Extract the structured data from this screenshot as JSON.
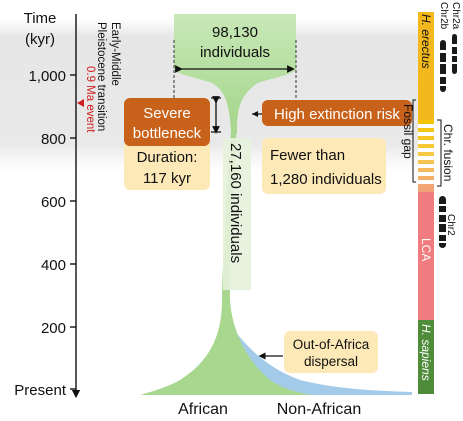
{
  "axis": {
    "title_line1": "Time",
    "title_line2": "(kyr)",
    "ticks": [
      "1,000",
      "800",
      "600",
      "400",
      "200",
      "Present"
    ]
  },
  "transition_label_line1": "Early-Middle",
  "transition_label_line2": "Pleistocene transition",
  "event_label": "0.9 Ma event",
  "population": {
    "top_count": "98,130",
    "top_unit": "individuals",
    "stem_label": "27,160 individuals",
    "left_branch": "African",
    "right_branch": "Non-African"
  },
  "bottleneck_box": {
    "title_line1": "Severe",
    "title_line2": "bottleneck",
    "body_line1": "Duration:",
    "body_line2": "117 kyr"
  },
  "risk_box": {
    "title": "High extinction risk",
    "body_line1": "Fewer than",
    "body_line2": "1,280 individuals"
  },
  "dispersal_box": {
    "line1": "Out-of-Africa",
    "line2": "dispersal"
  },
  "timeline_bar": {
    "erectus": "H. erectus",
    "lca": "LCA",
    "sapiens": "H. sapiens",
    "fossil_gap": "Fossil gap",
    "chr_fusion": "Chr. fusion",
    "chr2a": "Chr2a",
    "chr2b": "Chr2b",
    "chr2": "Chr2"
  },
  "colors": {
    "green_population": "#a8d890",
    "blue_population": "#9ec8e8",
    "orange_box": "#c8611a",
    "cream_box": "#fde9b8",
    "erectus": "#f2b81c",
    "lca": "#f07c80",
    "sapiens": "#4e8c3a",
    "event": "#cc1f1f",
    "shade": "#e9e9e9"
  }
}
